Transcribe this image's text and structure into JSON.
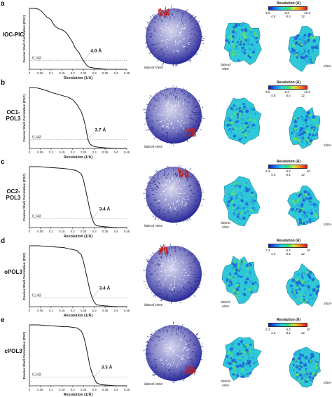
{
  "common": {
    "ylabel": "Fourier Shell Correlation (FSC)",
    "xlabel": "Resolution (1/Å)",
    "threshold_label": "0.143",
    "lateral_view_sphere": "lateral view",
    "lateral_view_map": "lateral view",
    "slice_label": "slice-",
    "colorbar_title": "Resolution (Å)"
  },
  "panels": [
    {
      "letter": "a",
      "name": "IOC-PIC",
      "resolution_label": "4.0 Å",
      "lateral_sphere": "lateral View",
      "cbar_top": [
        "3.0",
        "6.6",
        "10.2"
      ],
      "cbar_bottom": [
        "4.8",
        "8.4",
        "12"
      ],
      "show_map_lateral": true
    },
    {
      "letter": "b",
      "name": "OC1-\nPOL3",
      "resolution_label": "3.7 Å",
      "lateral_sphere": "lateral view",
      "cbar_top": [
        "3.0",
        "6.6",
        "10.2"
      ],
      "cbar_bottom": [
        "4.8",
        "8.4",
        "12"
      ],
      "show_map_lateral": false
    },
    {
      "letter": "c",
      "name": "OC2-\nPOL3",
      "resolution_label": "3.4 Å",
      "lateral_sphere": "lateral view",
      "cbar_top": [
        "2.3",
        "6.2",
        "10"
      ],
      "cbar_bottom": [
        "4.2",
        "8.1",
        "12"
      ],
      "show_map_lateral": true
    },
    {
      "letter": "d",
      "name": "oPOL3",
      "resolution_label": "3.4 Å",
      "lateral_sphere": "lateral view",
      "cbar_top": [
        "2.3",
        "6.2",
        "10"
      ],
      "cbar_bottom": [
        "4.2",
        "8.1",
        "12"
      ],
      "show_map_lateral": true
    },
    {
      "letter": "e",
      "name": "cPOL3",
      "resolution_label": "3.3 Å",
      "lateral_sphere": "lateral view",
      "cbar_top": [
        "2.3",
        "6.2",
        "10"
      ],
      "cbar_bottom": [
        "4.2",
        "8.1",
        "12"
      ],
      "show_map_lateral": true
    }
  ],
  "chart_data": [
    {
      "type": "line",
      "panel": "a",
      "xlabel": "Resolution (1/Å)",
      "ylabel": "Fourier Shell Correlation (FSC)",
      "xlim": [
        0,
        0.45
      ],
      "ylim": [
        0,
        1
      ],
      "xticks": [
        "0",
        "0.05",
        "0.1",
        "0.15",
        "0.2",
        "0.25",
        "0.3",
        "0.35",
        "0.4",
        "0.45"
      ],
      "threshold": 0.143,
      "annotation": "4.0 Å",
      "resolution_at_threshold": 0.25,
      "x": [
        0,
        0.02,
        0.04,
        0.05,
        0.06,
        0.07,
        0.08,
        0.09,
        0.1,
        0.11,
        0.12,
        0.13,
        0.14,
        0.15,
        0.16,
        0.17,
        0.18,
        0.19,
        0.2,
        0.21,
        0.22,
        0.23,
        0.24,
        0.25,
        0.26,
        0.27,
        0.28,
        0.3,
        0.33,
        0.36,
        0.4,
        0.45
      ],
      "y": [
        1.0,
        1.0,
        0.99,
        0.97,
        0.94,
        0.9,
        0.86,
        0.84,
        0.81,
        0.75,
        0.7,
        0.68,
        0.66,
        0.65,
        0.63,
        0.6,
        0.55,
        0.5,
        0.44,
        0.36,
        0.31,
        0.27,
        0.2,
        0.14,
        0.09,
        0.05,
        0.03,
        0.02,
        0.01,
        0.0,
        0.0,
        0.0
      ]
    },
    {
      "type": "line",
      "panel": "b",
      "xlabel": "Resolution (1/Å)",
      "ylabel": "Fourier Shell Correlation (FSC)",
      "xlim": [
        0,
        0.45
      ],
      "ylim": [
        0,
        1
      ],
      "xticks": [
        "0",
        "0.05",
        "0.1",
        "0.15",
        "0.2",
        "0.25",
        "0.3",
        "0.35",
        "0.4",
        "0.45"
      ],
      "threshold": 0.143,
      "annotation": "3.7 Å",
      "resolution_at_threshold": 0.27,
      "x": [
        0,
        0.02,
        0.04,
        0.06,
        0.08,
        0.1,
        0.12,
        0.14,
        0.16,
        0.18,
        0.2,
        0.22,
        0.24,
        0.25,
        0.26,
        0.27,
        0.28,
        0.29,
        0.3,
        0.32,
        0.35,
        0.4,
        0.45
      ],
      "y": [
        1.0,
        1.0,
        0.99,
        0.97,
        0.95,
        0.92,
        0.9,
        0.88,
        0.86,
        0.84,
        0.8,
        0.72,
        0.6,
        0.5,
        0.35,
        0.15,
        0.07,
        0.05,
        0.03,
        0.02,
        0.01,
        0.0,
        0.0
      ]
    },
    {
      "type": "line",
      "panel": "c",
      "xlabel": "Resolution (1/Å)",
      "ylabel": "Fourier Shell Correlation (FSC)",
      "xlim": [
        0,
        0.45
      ],
      "ylim": [
        0,
        1
      ],
      "xticks": [
        "0",
        "0.05",
        "0.1",
        "0.15",
        "0.2",
        "0.25",
        "0.3",
        "0.35",
        "0.4",
        "0.45"
      ],
      "threshold": 0.143,
      "annotation": "3.4 Å",
      "resolution_at_threshold": 0.29,
      "x": [
        0,
        0.04,
        0.08,
        0.12,
        0.16,
        0.18,
        0.2,
        0.22,
        0.24,
        0.25,
        0.26,
        0.27,
        0.28,
        0.29,
        0.3,
        0.31,
        0.33,
        0.36,
        0.4,
        0.45
      ],
      "y": [
        1.0,
        1.0,
        0.99,
        0.98,
        0.97,
        0.96,
        0.95,
        0.93,
        0.88,
        0.78,
        0.62,
        0.45,
        0.28,
        0.14,
        0.06,
        0.03,
        0.02,
        0.01,
        0.0,
        0.0
      ]
    },
    {
      "type": "line",
      "panel": "d",
      "xlabel": "Resolution (1/Å)",
      "ylabel": "Fourier Shell Correlation (FSC)",
      "xlim": [
        0,
        0.45
      ],
      "ylim": [
        0,
        1
      ],
      "xticks": [
        "0",
        "0.05",
        "0.1",
        "0.15",
        "0.2",
        "0.25",
        "0.3",
        "0.35",
        "0.4",
        "0.45"
      ],
      "threshold": 0.143,
      "annotation": "3.4 Å",
      "resolution_at_threshold": 0.29,
      "x": [
        0,
        0.04,
        0.08,
        0.12,
        0.16,
        0.18,
        0.2,
        0.22,
        0.24,
        0.25,
        0.26,
        0.27,
        0.28,
        0.29,
        0.3,
        0.31,
        0.33,
        0.36,
        0.4,
        0.45
      ],
      "y": [
        1.0,
        1.0,
        0.99,
        0.98,
        0.97,
        0.95,
        0.94,
        0.92,
        0.85,
        0.74,
        0.58,
        0.42,
        0.26,
        0.14,
        0.07,
        0.03,
        0.02,
        0.01,
        0.0,
        0.0
      ]
    },
    {
      "type": "line",
      "panel": "e",
      "xlabel": "Resolution (1/Å)",
      "ylabel": "Fourier Shell Correlation (FSC)",
      "xlim": [
        0,
        0.45
      ],
      "ylim": [
        0,
        1
      ],
      "xticks": [
        "0",
        "0.05",
        "0.1",
        "0.15",
        "0.2",
        "0.25",
        "0.3",
        "0.35",
        "0.4",
        "0.45"
      ],
      "threshold": 0.143,
      "annotation": "3.3 Å",
      "resolution_at_threshold": 0.3,
      "x": [
        0,
        0.04,
        0.08,
        0.12,
        0.16,
        0.18,
        0.2,
        0.22,
        0.24,
        0.25,
        0.26,
        0.27,
        0.28,
        0.29,
        0.3,
        0.31,
        0.33,
        0.36,
        0.4,
        0.45
      ],
      "y": [
        1.0,
        1.0,
        0.99,
        0.98,
        0.97,
        0.97,
        0.96,
        0.95,
        0.9,
        0.82,
        0.68,
        0.5,
        0.32,
        0.2,
        0.12,
        0.05,
        0.02,
        0.01,
        0.0,
        0.0
      ]
    }
  ],
  "colors": {
    "curve": "#1a1a1a",
    "threshold_line": "#9a9a9a",
    "sphere_base": "#2a2a9a",
    "sphere_hot": "#c0201c",
    "map_low": "#1e64d8",
    "map_mid": "#2ec8d8",
    "map_high": "#5ee06a"
  }
}
